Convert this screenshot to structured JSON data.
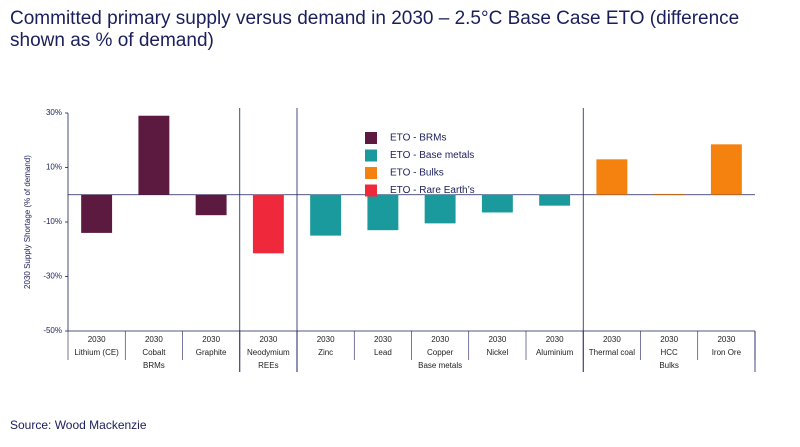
{
  "chart_data": {
    "type": "bar",
    "title": "Committed primary supply versus demand in 2030 – 2.5°C Base Case ETO (difference shown as % of demand)",
    "y_label": "2030 Supply Shortage (% of demand)",
    "period": "2030",
    "categories": [
      "Lithium (CE)",
      "Cobalt",
      "Graphite",
      "Neodymium",
      "Zinc",
      "Lead",
      "Copper",
      "Nickel",
      "Aluminium",
      "Thermal coal",
      "HCC",
      "Iron Ore"
    ],
    "groups": [
      {
        "label": "BRMs",
        "size": 3
      },
      {
        "label": "REEs",
        "size": 1
      },
      {
        "label": "Base metals",
        "size": 5
      },
      {
        "label": "Bulks",
        "size": 3
      }
    ],
    "series": [
      {
        "name": "ETO - BRMs",
        "color": "#5c1a40",
        "values": [
          -14,
          29,
          -7.5,
          null,
          null,
          null,
          null,
          null,
          null,
          null,
          null,
          null
        ]
      },
      {
        "name": "ETO - Base metals",
        "color": "#1a9a9c",
        "values": [
          null,
          null,
          null,
          null,
          -15,
          -13,
          -10.5,
          -6.5,
          -4,
          null,
          null,
          null
        ]
      },
      {
        "name": "ETO -  Bulks",
        "color": "#f5820f",
        "values": [
          null,
          null,
          null,
          null,
          null,
          null,
          null,
          null,
          null,
          13,
          0.3,
          18.5
        ]
      },
      {
        "name": "ETO -  Rare Earth’s",
        "color": "#f0283c",
        "values": [
          null,
          null,
          null,
          -21.5,
          null,
          null,
          null,
          null,
          null,
          null,
          null,
          null
        ]
      }
    ],
    "ylim": [
      -50,
      30
    ],
    "yticks": [
      {
        "value": 30,
        "label": "30%"
      },
      {
        "value": 10,
        "label": "10%"
      },
      {
        "value": -10,
        "label": "-10%"
      },
      {
        "value": -30,
        "label": "-30%"
      },
      {
        "value": -50,
        "label": "-50%"
      }
    ],
    "source": "Source: Wood Mackenzie"
  }
}
